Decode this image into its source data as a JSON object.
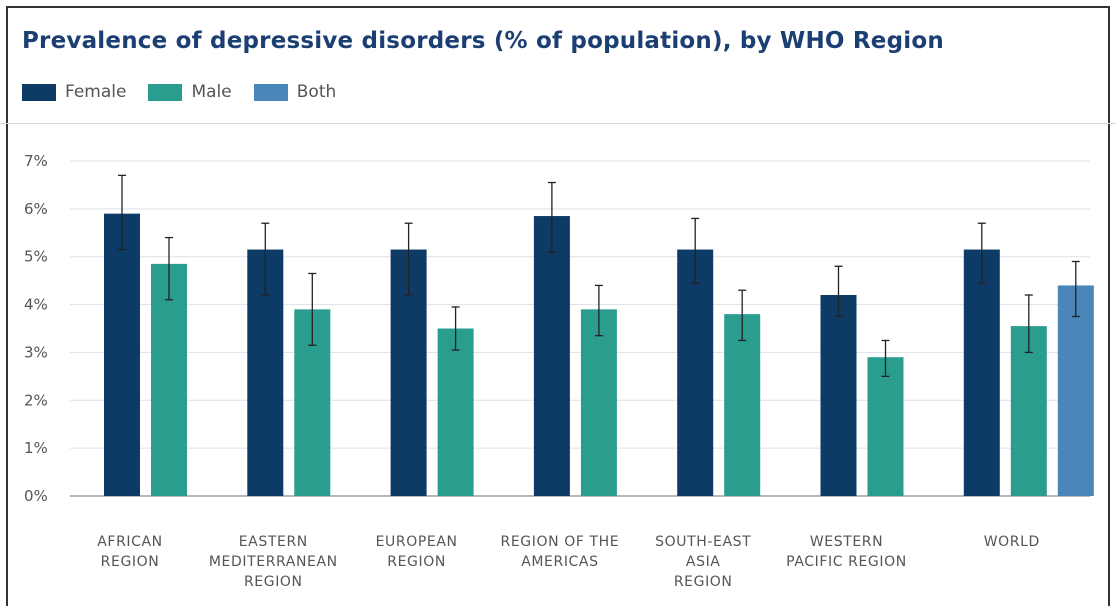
{
  "chart_data": {
    "type": "bar",
    "title": "Prevalence of depressive disorders (% of population), by WHO Region",
    "xlabel": "",
    "ylabel": "",
    "ylim": [
      0,
      7
    ],
    "yticks": [
      "0%",
      "1%",
      "2%",
      "3%",
      "4%",
      "5%",
      "6%",
      "7%"
    ],
    "grid": true,
    "legend_placement": "top-left",
    "categories": [
      [
        "AFRICAN",
        "REGION"
      ],
      [
        "EASTERN",
        "MEDITERRANEAN",
        "REGION"
      ],
      [
        "EUROPEAN",
        "REGION"
      ],
      [
        "REGION OF THE",
        "AMERICAS"
      ],
      [
        "SOUTH-EAST",
        "ASIA",
        "REGION"
      ],
      [
        "WESTERN",
        "PACIFIC REGION"
      ],
      [
        "WORLD"
      ]
    ],
    "series": [
      {
        "name": "Female",
        "color": "#0d3b66",
        "values": [
          5.9,
          5.15,
          5.15,
          5.85,
          5.15,
          4.2,
          5.15
        ],
        "error_low": [
          5.15,
          4.2,
          4.2,
          5.1,
          4.45,
          3.75,
          4.45
        ],
        "error_high": [
          6.7,
          5.7,
          5.7,
          6.55,
          5.8,
          4.8,
          5.7
        ]
      },
      {
        "name": "Male",
        "color": "#2a9d8f",
        "values": [
          4.85,
          3.9,
          3.5,
          3.9,
          3.8,
          2.9,
          3.55
        ],
        "error_low": [
          4.1,
          3.15,
          3.05,
          3.35,
          3.25,
          2.5,
          3.0
        ],
        "error_high": [
          5.4,
          4.65,
          3.95,
          4.4,
          4.3,
          3.25,
          4.2
        ]
      },
      {
        "name": "Both",
        "color": "#4a86b8",
        "values": [
          null,
          null,
          null,
          null,
          null,
          null,
          4.4
        ],
        "error_low": [
          null,
          null,
          null,
          null,
          null,
          null,
          3.75
        ],
        "error_high": [
          null,
          null,
          null,
          null,
          null,
          null,
          4.9
        ]
      }
    ]
  }
}
